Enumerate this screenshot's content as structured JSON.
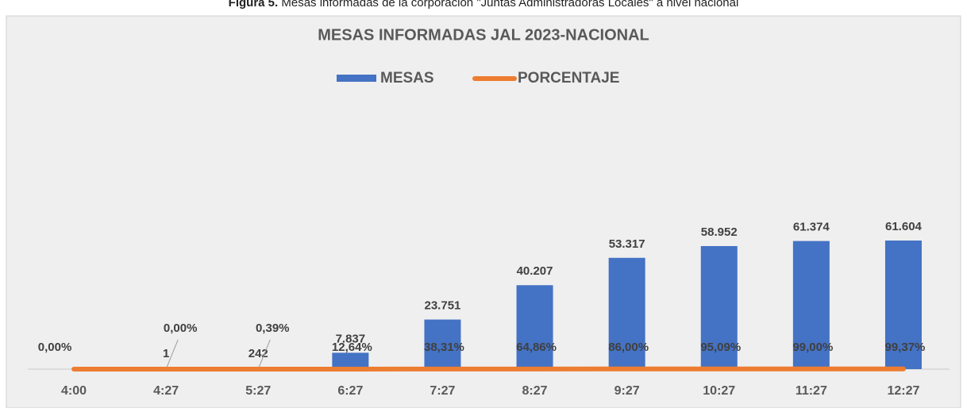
{
  "caption": {
    "label": "Figura 5.",
    "text": "Mesas informadas de la corporación \"Juntas Administradoras Locales\" a nivel nacional"
  },
  "chart_data": {
    "type": "bar",
    "title": "MESAS INFORMADAS JAL 2023-NACIONAL",
    "categories": [
      "4:00",
      "4:27",
      "5:27",
      "6:27",
      "7:27",
      "8:27",
      "9:27",
      "10:27",
      "11:27",
      "12:27"
    ],
    "series": [
      {
        "name": "MESAS",
        "color": "#4472c4",
        "values": [
          0,
          1,
          242,
          7837,
          23751,
          40207,
          53317,
          58952,
          61374,
          61604
        ],
        "value_labels": [
          null,
          "1",
          "242",
          "7.837",
          "23.751",
          "40.207",
          "53.317",
          "58.952",
          "61.374",
          "61.604"
        ]
      },
      {
        "name": "PORCENTAJE",
        "color": "#ed7d31",
        "type": "line",
        "values": [
          0,
          0,
          0.39,
          12.64,
          38.31,
          64.86,
          86,
          95.09,
          99,
          99.37
        ],
        "value_labels": [
          "0,00%",
          "0,00%",
          "0,39%",
          "12,64%",
          "38,31%",
          "64,86%",
          "86,00%",
          "95,09%",
          "99,00%",
          "99,37%"
        ]
      }
    ],
    "legend": "top"
  }
}
